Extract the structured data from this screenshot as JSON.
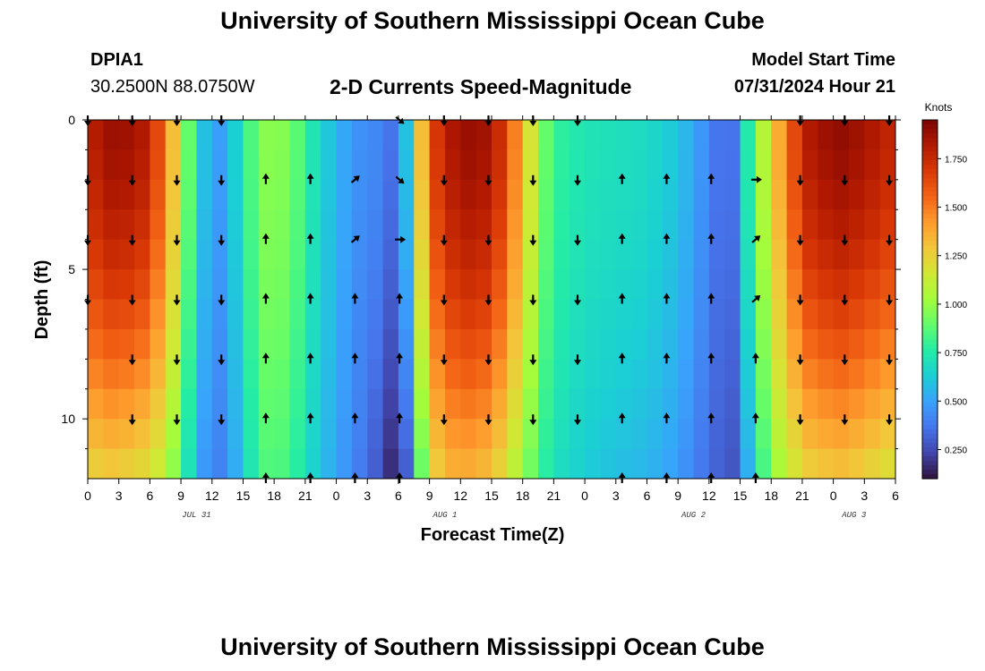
{
  "header": {
    "title": "University of Southern Mississippi Ocean Cube",
    "station_id": "DPIA1",
    "station_coords": "30.2500N  88.0750W",
    "chart_title": "2-D Currents Speed-Magnitude",
    "model_start_label": "Model Start Time",
    "model_start_value": "07/31/2024 Hour 21"
  },
  "footer": {
    "title": "University of Southern Mississippi Ocean Cube"
  },
  "chart_data": {
    "type": "heatmap",
    "title": "2-D Currents Speed-Magnitude",
    "xlabel": "Forecast Time(Z)",
    "ylabel": "Depth (ft)",
    "colorbar_label": "Knots",
    "x_range_hours": [
      0,
      78
    ],
    "y_range_ft": [
      0,
      12
    ],
    "x_ticks": [
      "0",
      "3",
      "6",
      "9",
      "12",
      "15",
      "18",
      "21",
      "0",
      "3",
      "6",
      "9",
      "12",
      "15",
      "18",
      "21",
      "0",
      "3",
      "6",
      "9",
      "12",
      "15",
      "18",
      "21",
      "0",
      "3",
      "6"
    ],
    "y_ticks": [
      0,
      5,
      10
    ],
    "date_labels": [
      {
        "text": "JUL 31",
        "hour": 10.5
      },
      {
        "text": "AUG 1",
        "hour": 34.5
      },
      {
        "text": "AUG 2",
        "hour": 58.5
      },
      {
        "text": "AUG 3",
        "hour": 74
      }
    ],
    "colorbar_ticks": [
      "0.250",
      "0.500",
      "0.750",
      "1.000",
      "1.250",
      "1.500",
      "1.750"
    ],
    "colorbar_range": [
      0.1,
      1.95
    ],
    "colormap": [
      "#30123b",
      "#4145ab",
      "#4675ed",
      "#39a2fc",
      "#1bcfd4",
      "#24eca6",
      "#61fc6c",
      "#a4fc3b",
      "#d1e834",
      "#f3c63a",
      "#fe9b2d",
      "#f36315",
      "#d93806",
      "#b11901",
      "#7a0403"
    ],
    "speed_columns": [
      {
        "hour": 0,
        "surface": 1.78,
        "bottom": 1.22
      },
      {
        "hour": 2.5,
        "surface": 1.88,
        "bottom": 1.25
      },
      {
        "hour": 5,
        "surface": 1.85,
        "bottom": 1.2
      },
      {
        "hour": 7.5,
        "surface": 1.55,
        "bottom": 1.08
      },
      {
        "hour": 9,
        "surface": 1.08,
        "bottom": 0.85
      },
      {
        "hour": 10.5,
        "surface": 0.72,
        "bottom": 0.55
      },
      {
        "hour": 12,
        "surface": 0.45,
        "bottom": 0.38
      },
      {
        "hour": 13.5,
        "surface": 0.52,
        "bottom": 0.42
      },
      {
        "hour": 15,
        "surface": 0.75,
        "bottom": 0.62
      },
      {
        "hour": 16.5,
        "surface": 0.95,
        "bottom": 0.82
      },
      {
        "hour": 18,
        "surface": 1.0,
        "bottom": 0.88
      },
      {
        "hour": 20,
        "surface": 0.9,
        "bottom": 0.78
      },
      {
        "hour": 22,
        "surface": 0.7,
        "bottom": 0.62
      },
      {
        "hour": 24,
        "surface": 0.55,
        "bottom": 0.5
      },
      {
        "hour": 26,
        "surface": 0.45,
        "bottom": 0.4
      },
      {
        "hour": 28,
        "surface": 0.42,
        "bottom": 0.28
      },
      {
        "hour": 29.5,
        "surface": 0.35,
        "bottom": 0.14
      },
      {
        "hour": 30.5,
        "surface": 0.48,
        "bottom": 0.2
      },
      {
        "hour": 31.5,
        "surface": 0.92,
        "bottom": 0.55
      },
      {
        "hour": 32.5,
        "surface": 1.45,
        "bottom": 1.0
      },
      {
        "hour": 34,
        "surface": 1.75,
        "bottom": 1.3
      },
      {
        "hour": 36,
        "surface": 1.88,
        "bottom": 1.35
      },
      {
        "hour": 38,
        "surface": 1.88,
        "bottom": 1.32
      },
      {
        "hour": 40,
        "surface": 1.72,
        "bottom": 1.2
      },
      {
        "hour": 42,
        "surface": 1.35,
        "bottom": 1.0
      },
      {
        "hour": 43.5,
        "surface": 1.0,
        "bottom": 0.82
      },
      {
        "hour": 45,
        "surface": 0.8,
        "bottom": 0.7
      },
      {
        "hour": 48,
        "surface": 0.72,
        "bottom": 0.62
      },
      {
        "hour": 51,
        "surface": 0.7,
        "bottom": 0.58
      },
      {
        "hour": 54,
        "surface": 0.68,
        "bottom": 0.55
      },
      {
        "hour": 57,
        "surface": 0.6,
        "bottom": 0.48
      },
      {
        "hour": 59,
        "surface": 0.48,
        "bottom": 0.38
      },
      {
        "hour": 61,
        "surface": 0.35,
        "bottom": 0.3
      },
      {
        "hour": 62,
        "surface": 0.3,
        "bottom": 0.25
      },
      {
        "hour": 63,
        "surface": 0.55,
        "bottom": 0.35
      },
      {
        "hour": 64.5,
        "surface": 0.95,
        "bottom": 0.7
      },
      {
        "hour": 66,
        "surface": 1.2,
        "bottom": 0.95
      },
      {
        "hour": 67.5,
        "surface": 1.55,
        "bottom": 1.1
      },
      {
        "hour": 70,
        "surface": 1.85,
        "bottom": 1.25
      },
      {
        "hour": 73,
        "surface": 1.9,
        "bottom": 1.28
      },
      {
        "hour": 76,
        "surface": 1.82,
        "bottom": 1.2
      },
      {
        "hour": 78,
        "surface": 1.75,
        "bottom": 1.15
      }
    ],
    "arrow_depths_ft": [
      0,
      2,
      4,
      6,
      8,
      10,
      12
    ],
    "arrow_columns": [
      {
        "hour": 0,
        "dir": [
          "down",
          "down",
          "down",
          "down",
          "",
          "",
          ""
        ]
      },
      {
        "hour": 4.3,
        "dir": [
          "down",
          "down",
          "down",
          "down",
          "down",
          "down",
          ""
        ]
      },
      {
        "hour": 8.6,
        "dir": [
          "down",
          "down",
          "down",
          "down",
          "down",
          "down",
          ""
        ]
      },
      {
        "hour": 12.9,
        "dir": [
          "down",
          "down",
          "down",
          "down",
          "down",
          "down",
          ""
        ]
      },
      {
        "hour": 17.2,
        "dir": [
          "",
          "up",
          "up",
          "up",
          "up",
          "up",
          "up"
        ]
      },
      {
        "hour": 21.5,
        "dir": [
          "",
          "up",
          "up",
          "up",
          "up",
          "up",
          "up"
        ]
      },
      {
        "hour": 25.8,
        "dir": [
          "",
          "up-right",
          "up-right",
          "up",
          "up",
          "up",
          "up"
        ]
      },
      {
        "hour": 30.1,
        "dir": [
          "down-right",
          "down-right",
          "right",
          "up",
          "up",
          "up",
          "up"
        ]
      },
      {
        "hour": 34.4,
        "dir": [
          "down",
          "down",
          "down",
          "down",
          "down",
          "down",
          ""
        ]
      },
      {
        "hour": 38.7,
        "dir": [
          "down",
          "down",
          "down",
          "down",
          "down",
          "down",
          ""
        ]
      },
      {
        "hour": 43,
        "dir": [
          "down",
          "down",
          "down",
          "down",
          "down",
          "down",
          ""
        ]
      },
      {
        "hour": 47.3,
        "dir": [
          "down",
          "down",
          "down",
          "down",
          "down",
          "down",
          ""
        ]
      },
      {
        "hour": 51.6,
        "dir": [
          "",
          "up",
          "up",
          "up",
          "up",
          "up",
          "up"
        ]
      },
      {
        "hour": 55.9,
        "dir": [
          "",
          "up",
          "up",
          "up",
          "up",
          "up",
          "up"
        ]
      },
      {
        "hour": 60.2,
        "dir": [
          "",
          "up",
          "up",
          "up",
          "up",
          "up",
          "up"
        ]
      },
      {
        "hour": 64.5,
        "dir": [
          "",
          "right",
          "up-right",
          "up-right",
          "up",
          "up",
          "up"
        ]
      },
      {
        "hour": 68.8,
        "dir": [
          "down",
          "down",
          "down",
          "down",
          "down",
          "down",
          ""
        ]
      },
      {
        "hour": 73.1,
        "dir": [
          "down",
          "down",
          "down",
          "down",
          "down",
          "down",
          ""
        ]
      },
      {
        "hour": 77.4,
        "dir": [
          "down",
          "down",
          "down",
          "down",
          "down",
          "down",
          ""
        ]
      }
    ]
  }
}
